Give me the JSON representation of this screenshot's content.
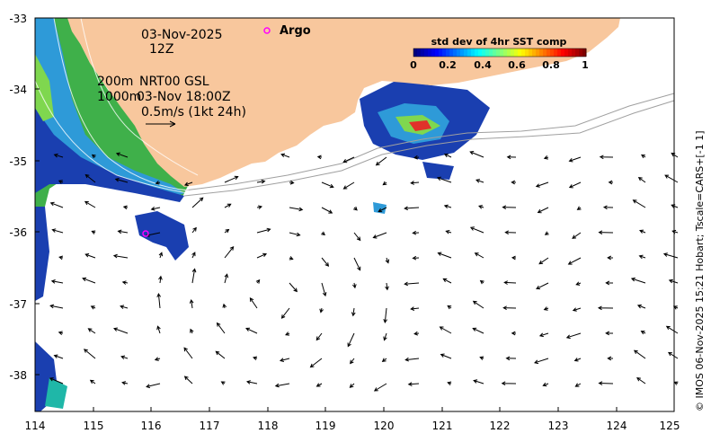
{
  "map": {
    "date": "03-Nov-2025",
    "hour": "12Z",
    "line_200m": "200m",
    "line_1000m": "1000m",
    "product": "NRT00 GSL",
    "product_time": "03-Nov 18:00Z",
    "scale_label": "0.5m/s (1kt 24h)",
    "argo_label": "Argo",
    "credit": "© IMOS 06-Nov-2025 15:21 Hobart; Tscale=CARS+[-1 1]"
  },
  "colorbar": {
    "title": "std dev of 4hr SST comp",
    "ticks": [
      "0",
      "0.2",
      "0.4",
      "0.6",
      "0.8",
      "1"
    ],
    "colors": [
      "#00007f",
      "#0000ff",
      "#007fff",
      "#00ffff",
      "#7fff7f",
      "#ffff00",
      "#ff7f00",
      "#ff0000",
      "#7f0000"
    ]
  },
  "axes": {
    "x_ticks": [
      "114",
      "115",
      "116",
      "117",
      "118",
      "119",
      "120",
      "121",
      "122",
      "123",
      "124",
      "125"
    ],
    "y_ticks": [
      "-33",
      "-34",
      "-35",
      "-36",
      "-37",
      "-38"
    ],
    "lon_range": [
      114,
      125
    ],
    "lat_range": [
      -33,
      -38.5
    ]
  },
  "colors": {
    "land": "#f8c79d",
    "argo": "#ff00ff",
    "ocean": "#ffffff"
  }
}
